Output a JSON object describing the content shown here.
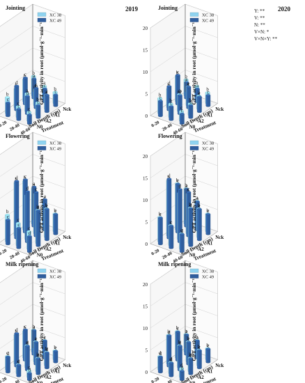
{
  "figure": {
    "years": [
      "2019",
      "2020"
    ],
    "stats_text": [
      "Y: **",
      "V: **",
      "N: **",
      "V×N: *",
      "V×N×Y: **"
    ]
  },
  "colors": {
    "xc38": "#8fd3f0",
    "xc49": "#2f5e9e"
  },
  "chart_data": [
    {
      "type": "bar",
      "title": "Jointing",
      "year": "2019",
      "ylabel": "GPT activity in root (μmol·g⁻¹·min⁻¹)",
      "xlabel": "Treatment",
      "zlabel": "Soil Depth (cm)",
      "ylim": [
        0,
        20
      ],
      "yticks": [
        "0",
        "5",
        "10",
        "15",
        "20"
      ],
      "treatments": [
        "Nck",
        "A1",
        "A2",
        "N0"
      ],
      "depths": [
        "0-20",
        "20-40",
        "40-60"
      ],
      "legend": [
        "XC 38",
        "XC 49"
      ],
      "series": [
        {
          "name": "XC 38",
          "values": [
            [
              4.4,
              3.0,
              2.5
            ],
            [
              5.0,
              3.6,
              3.2
            ],
            [
              4.2,
              4.0,
              2.8
            ],
            [
              3.6,
              2.4,
              2.0
            ]
          ]
        },
        {
          "name": "XC 49",
          "values": [
            [
              4.4,
              3.0,
              2.5
            ],
            [
              6.0,
              4.5,
              3.8
            ],
            [
              5.5,
              4.0,
              2.8
            ],
            [
              3.0,
              2.4,
              2.0
            ]
          ]
        }
      ],
      "letters": [
        [
          [
            "b",
            "a",
            "b"
          ],
          [
            "a",
            "c",
            "c"
          ]
        ],
        [
          [
            "b",
            "ab",
            "a"
          ],
          [
            "c",
            "c",
            "c"
          ]
        ],
        [
          [
            "b",
            "a",
            "b"
          ],
          [
            "d",
            "d",
            "c"
          ]
        ],
        [
          [
            "b",
            "c",
            "c"
          ],
          [
            "c",
            "c",
            "c"
          ]
        ]
      ]
    },
    {
      "type": "bar",
      "title": "Jointing",
      "year": "2020",
      "ylabel": "GPT activity in root (μmol·g⁻¹·min⁻¹)",
      "xlabel": "Treatment",
      "zlabel": "Soil Depth (cm)",
      "ylim": [
        0,
        20
      ],
      "yticks": [
        "0",
        "5",
        "10",
        "15",
        "20"
      ],
      "treatments": [
        "Nck",
        "A1",
        "A2",
        "N0"
      ],
      "depths": [
        "0-20",
        "20-40",
        "40-60"
      ],
      "legend": [
        "XC 38",
        "XC 49"
      ],
      "series": [
        {
          "name": "XC 38",
          "values": [
            [
              3.6,
              3.0,
              2.4
            ],
            [
              5.8,
              4.2,
              3.0
            ],
            [
              4.2,
              3.8,
              2.6
            ],
            [
              3.4,
              3.0,
              2.2
            ]
          ]
        },
        {
          "name": "XC 49",
          "values": [
            [
              3.6,
              3.0,
              2.4
            ],
            [
              6.6,
              4.8,
              3.4
            ],
            [
              5.4,
              4.2,
              2.8
            ],
            [
              3.4,
              3.0,
              2.2
            ]
          ]
        }
      ],
      "letters": [
        [
          [
            "b",
            "b",
            "b"
          ],
          [
            "a",
            "a",
            "c"
          ]
        ],
        [
          [
            "b",
            "a",
            "a"
          ],
          [
            "c",
            "c",
            "c"
          ]
        ],
        [
          [
            "b",
            "ab",
            "b"
          ],
          [
            "d",
            "d",
            "d"
          ]
        ],
        [
          [
            "b",
            "b",
            "c"
          ],
          [
            "c",
            "c",
            "c"
          ]
        ]
      ]
    },
    {
      "type": "bar",
      "title": "Flowering",
      "year": "2019",
      "ylabel": "GPT activity in root (μmol·g⁻¹·min⁻¹)",
      "xlabel": "Treatment",
      "zlabel": "Soil Depth (cm)",
      "ylim": [
        0,
        20
      ],
      "yticks": [
        "0",
        "5",
        "10",
        "15",
        "20"
      ],
      "treatments": [
        "Nck",
        "A1",
        "A2",
        "N0"
      ],
      "depths": [
        "0-20",
        "20-40",
        "40-60"
      ],
      "legend": [
        "XC 38",
        "XC 49"
      ],
      "series": [
        {
          "name": "XC 38",
          "values": [
            [
              8.0,
              6.0,
              4.0
            ],
            [
              11.0,
              9.0,
              6.5
            ],
            [
              12.0,
              10.0,
              7.5
            ],
            [
              6.0,
              5.0,
              4.0
            ]
          ]
        },
        {
          "name": "XC 49",
          "values": [
            [
              9.0,
              7.0,
              4.5
            ],
            [
              12.0,
              10.0,
              7.0
            ],
            [
              13.0,
              11.5,
              8.0
            ],
            [
              5.5,
              4.5,
              3.5
            ]
          ]
        }
      ],
      "letters": [
        [
          [
            "b",
            "a",
            "b"
          ],
          [
            "a",
            "a",
            "c"
          ]
        ],
        [
          [
            "b",
            "a",
            "b"
          ],
          [
            "c",
            "c",
            "c"
          ]
        ],
        [
          [
            "b",
            "b",
            "b"
          ],
          [
            "d",
            "d",
            "d"
          ]
        ],
        [
          [
            "b",
            "c",
            "c"
          ],
          [
            "c",
            "c",
            "d"
          ]
        ]
      ]
    },
    {
      "type": "bar",
      "title": "Flowering",
      "year": "2020",
      "ylabel": "GPT activity in root (μmol·g⁻¹·min⁻¹)",
      "xlabel": "Treatment",
      "zlabel": "Soil Depth (cm)",
      "ylim": [
        0,
        20
      ],
      "yticks": [
        "0",
        "5",
        "10",
        "15",
        "20"
      ],
      "treatments": [
        "Nck",
        "A1",
        "A2",
        "N0"
      ],
      "depths": [
        "0-20",
        "20-40",
        "40-60"
      ],
      "legend": [
        "XC 38",
        "XC 49"
      ],
      "series": [
        {
          "name": "XC 38",
          "values": [
            [
              8.0,
              6.0,
              4.0
            ],
            [
              10.5,
              9.0,
              6.5
            ],
            [
              12.5,
              10.5,
              8.0
            ],
            [
              5.5,
              4.5,
              3.5
            ]
          ]
        },
        {
          "name": "XC 49",
          "values": [
            [
              8.5,
              6.5,
              4.5
            ],
            [
              11.0,
              10.0,
              7.0
            ],
            [
              13.5,
              12.0,
              8.5
            ],
            [
              6.0,
              5.0,
              4.0
            ]
          ]
        }
      ],
      "letters": [
        [
          [
            "b",
            "a",
            "b"
          ],
          [
            "a",
            "a",
            "c"
          ]
        ],
        [
          [
            "b",
            "b",
            "b"
          ],
          [
            "c",
            "c",
            "c"
          ]
        ],
        [
          [
            "b",
            "ab",
            "b"
          ],
          [
            "d",
            "d",
            "d"
          ]
        ],
        [
          [
            "b",
            "c",
            "c"
          ],
          [
            "c",
            "c",
            "d"
          ]
        ]
      ]
    },
    {
      "type": "bar",
      "title": "Milk ripening",
      "year": "2019",
      "ylabel": "GPT activity in root (μmol·g⁻¹·min⁻¹)",
      "xlabel": "Treatment",
      "zlabel": "Soil Depth (cm)",
      "ylim": [
        0,
        20
      ],
      "yticks": [
        "0",
        "5",
        "10",
        "15",
        "20"
      ],
      "treatments": [
        "Nck",
        "A1",
        "A2",
        "N0"
      ],
      "depths": [
        "0-20",
        "20-40",
        "40-60"
      ],
      "legend": [
        "XC 38",
        "XC 49"
      ],
      "series": [
        {
          "name": "XC 38",
          "values": [
            [
              5.0,
              3.5,
              2.0
            ],
            [
              6.0,
              4.5,
              3.0
            ],
            [
              6.5,
              5.0,
              3.0
            ],
            [
              3.0,
              2.0,
              1.5
            ]
          ]
        },
        {
          "name": "XC 49",
          "values": [
            [
              5.5,
              4.0,
              2.5
            ],
            [
              7.0,
              5.0,
              3.5
            ],
            [
              7.5,
              5.5,
              3.5
            ],
            [
              3.5,
              2.5,
              1.5
            ]
          ]
        }
      ],
      "letters": [
        [
          [
            "b",
            "a",
            "b"
          ],
          [
            "a",
            "c",
            "c"
          ]
        ],
        [
          [
            "b",
            "a",
            "b"
          ],
          [
            "c",
            "c",
            "d"
          ]
        ],
        [
          [
            "b",
            "a",
            "b"
          ],
          [
            "d",
            "d",
            "d"
          ]
        ],
        [
          [
            "c",
            "c",
            "c"
          ],
          [
            "d",
            "d",
            "d"
          ]
        ]
      ]
    },
    {
      "type": "bar",
      "title": "Milk ripening",
      "year": "2020",
      "ylabel": "GPT activity in root (μmol·g⁻¹·min⁻¹)",
      "xlabel": "Treatment",
      "zlabel": "Soil Depth (cm)",
      "ylim": [
        0,
        20
      ],
      "yticks": [
        "0",
        "5",
        "10",
        "15",
        "20"
      ],
      "treatments": [
        "Nck",
        "A1",
        "A2",
        "N0"
      ],
      "depths": [
        "0-20",
        "20-40",
        "40-60"
      ],
      "legend": [
        "XC 38",
        "XC 49"
      ],
      "series": [
        {
          "name": "XC 38",
          "values": [
            [
              4.0,
              3.5,
              2.5
            ],
            [
              6.0,
              4.5,
              3.5
            ],
            [
              6.5,
              5.0,
              3.0
            ],
            [
              3.0,
              2.5,
              2.0
            ]
          ]
        },
        {
          "name": "XC 49",
          "values": [
            [
              4.5,
              4.0,
              3.0
            ],
            [
              6.5,
              5.0,
              4.0
            ],
            [
              7.0,
              5.5,
              3.5
            ],
            [
              3.5,
              3.0,
              2.0
            ]
          ]
        }
      ],
      "letters": [
        [
          [
            "b",
            "b",
            "b"
          ],
          [
            "a",
            "a",
            "c"
          ]
        ],
        [
          [
            "b",
            "b",
            "b"
          ],
          [
            "c",
            "c",
            "c"
          ]
        ],
        [
          [
            "b",
            "b",
            "b"
          ],
          [
            "d",
            "d",
            "d"
          ]
        ],
        [
          [
            "d",
            "d",
            "d"
          ],
          [
            "d",
            "d",
            "d"
          ]
        ]
      ]
    }
  ]
}
